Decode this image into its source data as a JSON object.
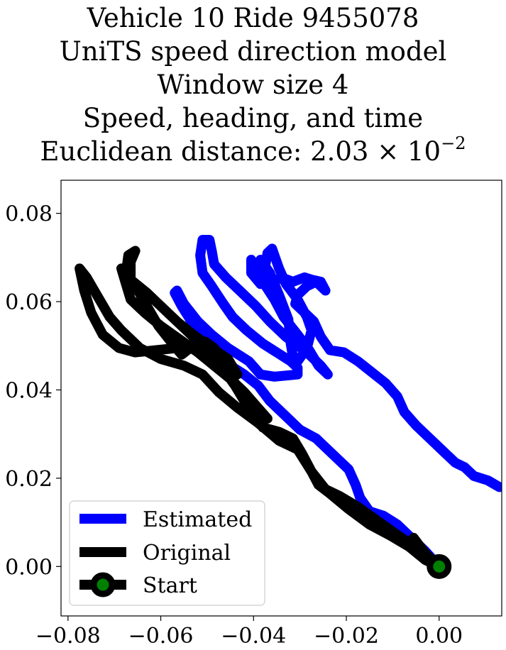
{
  "chart_data": {
    "type": "line",
    "title_lines": [
      "Vehicle 10 Ride 9455078",
      "UniTS speed direction model",
      "Window size 4",
      "Speed, heading, and time"
    ],
    "title_distance_prefix": "Euclidean distance: ",
    "title_distance_mantissa": "2.03",
    "title_distance_times": "×",
    "title_distance_base": "10",
    "title_distance_exponent": "−2",
    "xlim": [
      -0.0815,
      0.0135
    ],
    "ylim": [
      -0.0112,
      0.0875
    ],
    "x_ticks": [
      -0.08,
      -0.06,
      -0.04,
      -0.02,
      0.0
    ],
    "x_tick_labels": [
      "−0.08",
      "−0.06",
      "−0.04",
      "−0.02",
      "0.00"
    ],
    "y_ticks": [
      0.0,
      0.02,
      0.04,
      0.06,
      0.08
    ],
    "y_tick_labels": [
      "0.00",
      "0.02",
      "0.04",
      "0.06",
      "0.08"
    ],
    "grid": false,
    "legend_position": "lower-left",
    "series": [
      {
        "name": "Estimated",
        "color": "#0000ff",
        "points": [
          [
            0.0,
            0.0
          ],
          [
            -0.003,
            0.0035
          ],
          [
            -0.006,
            0.0065
          ],
          [
            -0.009,
            0.0095
          ],
          [
            -0.012,
            0.0115
          ],
          [
            -0.015,
            0.0125
          ],
          [
            -0.017,
            0.0155
          ],
          [
            -0.018,
            0.0185
          ],
          [
            -0.0195,
            0.022
          ],
          [
            -0.022,
            0.0245
          ],
          [
            -0.0245,
            0.027
          ],
          [
            -0.0265,
            0.029
          ],
          [
            -0.03,
            0.031
          ],
          [
            -0.0335,
            0.0345
          ],
          [
            -0.0365,
            0.0375
          ],
          [
            -0.039,
            0.041
          ],
          [
            -0.042,
            0.0435
          ],
          [
            -0.045,
            0.0455
          ],
          [
            -0.048,
            0.048
          ],
          [
            -0.0495,
            0.0505
          ],
          [
            -0.0525,
            0.0535
          ],
          [
            -0.054,
            0.0565
          ],
          [
            -0.0555,
            0.059
          ],
          [
            -0.057,
            0.062
          ],
          [
            -0.0565,
            0.0625
          ],
          [
            -0.055,
            0.0595
          ],
          [
            -0.052,
            0.0555
          ],
          [
            -0.049,
            0.0525
          ],
          [
            -0.0455,
            0.0495
          ],
          [
            -0.041,
            0.0465
          ],
          [
            -0.0385,
            0.0435
          ],
          [
            -0.0355,
            0.043
          ],
          [
            -0.0305,
            0.0435
          ],
          [
            -0.0305,
            0.045
          ],
          [
            -0.032,
            0.0465
          ],
          [
            -0.035,
            0.0485
          ],
          [
            -0.038,
            0.0505
          ],
          [
            -0.0415,
            0.0535
          ],
          [
            -0.0445,
            0.0565
          ],
          [
            -0.0465,
            0.0595
          ],
          [
            -0.049,
            0.0635
          ],
          [
            -0.051,
            0.0665
          ],
          [
            -0.0515,
            0.0705
          ],
          [
            -0.051,
            0.074
          ],
          [
            -0.0495,
            0.074
          ],
          [
            -0.049,
            0.0715
          ],
          [
            -0.0485,
            0.0685
          ],
          [
            -0.046,
            0.0655
          ],
          [
            -0.043,
            0.0625
          ],
          [
            -0.0395,
            0.059
          ],
          [
            -0.0365,
            0.0555
          ],
          [
            -0.033,
            0.052
          ],
          [
            -0.0285,
            0.0485
          ],
          [
            -0.0255,
            0.0455
          ],
          [
            -0.024,
            0.0435
          ],
          [
            -0.026,
            0.0455
          ],
          [
            -0.028,
            0.049
          ],
          [
            -0.0305,
            0.0525
          ],
          [
            -0.0335,
            0.0565
          ],
          [
            -0.0355,
            0.0605
          ],
          [
            -0.038,
            0.0645
          ],
          [
            -0.0395,
            0.068
          ],
          [
            -0.0385,
            0.0695
          ],
          [
            -0.0365,
            0.0665
          ],
          [
            -0.0345,
            0.0615
          ],
          [
            -0.0325,
            0.056
          ],
          [
            -0.032,
            0.0505
          ],
          [
            -0.0315,
            0.0475
          ],
          [
            -0.0305,
            0.0465
          ],
          [
            -0.0285,
            0.0495
          ],
          [
            -0.0275,
            0.0535
          ],
          [
            -0.0285,
            0.0565
          ],
          [
            -0.0305,
            0.0605
          ],
          [
            -0.033,
            0.064
          ],
          [
            -0.0345,
            0.0675
          ],
          [
            -0.036,
            0.072
          ],
          [
            -0.037,
            0.071
          ],
          [
            -0.0375,
            0.068
          ],
          [
            -0.039,
            0.0685
          ],
          [
            -0.0385,
            0.064
          ],
          [
            -0.0405,
            0.0665
          ],
          [
            -0.0405,
            0.0695
          ],
          [
            -0.0385,
            0.0655
          ],
          [
            -0.0365,
            0.064
          ],
          [
            -0.034,
            0.0655
          ],
          [
            -0.0315,
            0.0645
          ],
          [
            -0.029,
            0.0655
          ],
          [
            -0.0275,
            0.065
          ],
          [
            -0.0255,
            0.0645
          ],
          [
            -0.0245,
            0.0625
          ],
          [
            -0.0265,
            0.0645
          ],
          [
            -0.0285,
            0.0635
          ],
          [
            -0.0305,
            0.0615
          ],
          [
            -0.031,
            0.0595
          ],
          [
            -0.029,
            0.0575
          ],
          [
            -0.027,
            0.0555
          ],
          [
            -0.0255,
            0.052
          ],
          [
            -0.0235,
            0.049
          ],
          [
            -0.0205,
            0.0485
          ],
          [
            -0.0175,
            0.0465
          ],
          [
            -0.0145,
            0.044
          ],
          [
            -0.0115,
            0.0415
          ],
          [
            -0.009,
            0.0385
          ],
          [
            -0.0075,
            0.035
          ],
          [
            -0.005,
            0.032
          ],
          [
            -0.0025,
            0.0295
          ],
          [
            0.0005,
            0.0265
          ],
          [
            0.0035,
            0.0235
          ],
          [
            0.0055,
            0.0225
          ],
          [
            0.0075,
            0.0205
          ],
          [
            0.0105,
            0.0195
          ],
          [
            0.013,
            0.018
          ]
        ]
      },
      {
        "name": "Original",
        "color": "#000000",
        "points": [
          [
            0.0,
            0.0
          ],
          [
            -0.003,
            0.0015
          ],
          [
            -0.0065,
            0.0045
          ],
          [
            -0.0105,
            0.007
          ],
          [
            -0.015,
            0.0095
          ],
          [
            -0.0195,
            0.013
          ],
          [
            -0.0235,
            0.0165
          ],
          [
            -0.026,
            0.0185
          ],
          [
            -0.0275,
            0.0215
          ],
          [
            -0.0295,
            0.0255
          ],
          [
            -0.0315,
            0.029
          ],
          [
            -0.0345,
            0.0305
          ],
          [
            -0.038,
            0.0315
          ],
          [
            -0.0405,
            0.0355
          ],
          [
            -0.0425,
            0.0385
          ],
          [
            -0.0445,
            0.0425
          ],
          [
            -0.047,
            0.046
          ],
          [
            -0.0485,
            0.0495
          ],
          [
            -0.0505,
            0.051
          ],
          [
            -0.0525,
            0.0505
          ],
          [
            -0.0555,
            0.048
          ],
          [
            -0.0575,
            0.0505
          ],
          [
            -0.0605,
            0.0545
          ],
          [
            -0.063,
            0.059
          ],
          [
            -0.066,
            0.0645
          ],
          [
            -0.0685,
            0.0675
          ],
          [
            -0.0675,
            0.064
          ],
          [
            -0.0665,
            0.0605
          ],
          [
            -0.0635,
            0.0575
          ],
          [
            -0.06,
            0.0545
          ],
          [
            -0.056,
            0.0515
          ],
          [
            -0.052,
            0.0485
          ],
          [
            -0.0485,
            0.0455
          ],
          [
            -0.045,
            0.0425
          ],
          [
            -0.042,
            0.0395
          ],
          [
            -0.0395,
            0.0365
          ],
          [
            -0.037,
            0.0335
          ],
          [
            -0.0395,
            0.034
          ],
          [
            -0.042,
            0.0375
          ],
          [
            -0.044,
            0.041
          ],
          [
            -0.047,
            0.0455
          ],
          [
            -0.0505,
            0.0495
          ],
          [
            -0.054,
            0.053
          ],
          [
            -0.058,
            0.057
          ],
          [
            -0.062,
            0.061
          ],
          [
            -0.066,
            0.063
          ],
          [
            -0.0675,
            0.0665
          ],
          [
            -0.067,
            0.0705
          ],
          [
            -0.0655,
            0.0715
          ],
          [
            -0.0665,
            0.069
          ],
          [
            -0.0665,
            0.065
          ],
          [
            -0.063,
            0.062
          ],
          [
            -0.06,
            0.059
          ],
          [
            -0.0565,
            0.0555
          ],
          [
            -0.053,
            0.0525
          ],
          [
            -0.049,
            0.0495
          ],
          [
            -0.0455,
            0.046
          ],
          [
            -0.0435,
            0.0435
          ],
          [
            -0.0455,
            0.047
          ],
          [
            -0.049,
            0.0495
          ],
          [
            -0.0525,
            0.0505
          ],
          [
            -0.0565,
            0.0495
          ],
          [
            -0.061,
            0.049
          ],
          [
            -0.0655,
            0.0485
          ],
          [
            -0.069,
            0.0495
          ],
          [
            -0.0725,
            0.0525
          ],
          [
            -0.075,
            0.0575
          ],
          [
            -0.0765,
            0.0625
          ],
          [
            -0.0775,
            0.0675
          ],
          [
            -0.076,
            0.0655
          ],
          [
            -0.0735,
            0.061
          ],
          [
            -0.071,
            0.0565
          ],
          [
            -0.0685,
            0.0535
          ],
          [
            -0.0645,
            0.0495
          ],
          [
            -0.06,
            0.047
          ],
          [
            -0.055,
            0.0455
          ],
          [
            -0.051,
            0.0435
          ],
          [
            -0.0475,
            0.0395
          ],
          [
            -0.0435,
            0.036
          ],
          [
            -0.039,
            0.0325
          ],
          [
            -0.0345,
            0.0285
          ],
          [
            -0.0305,
            0.0265
          ],
          [
            -0.0275,
            0.0215
          ],
          [
            -0.0245,
            0.0175
          ],
          [
            -0.0215,
            0.016
          ],
          [
            -0.0175,
            0.0135
          ],
          [
            -0.0135,
            0.0105
          ],
          [
            -0.0095,
            0.0075
          ],
          [
            -0.006,
            0.005
          ],
          [
            -0.0055,
            0.0065
          ],
          [
            -0.003,
            0.003
          ],
          [
            0.0,
            0.0
          ]
        ]
      }
    ],
    "start": {
      "name": "Start",
      "x": 0.0,
      "y": 0.0,
      "edge_color": "#000000",
      "face_color": "#008000"
    }
  }
}
